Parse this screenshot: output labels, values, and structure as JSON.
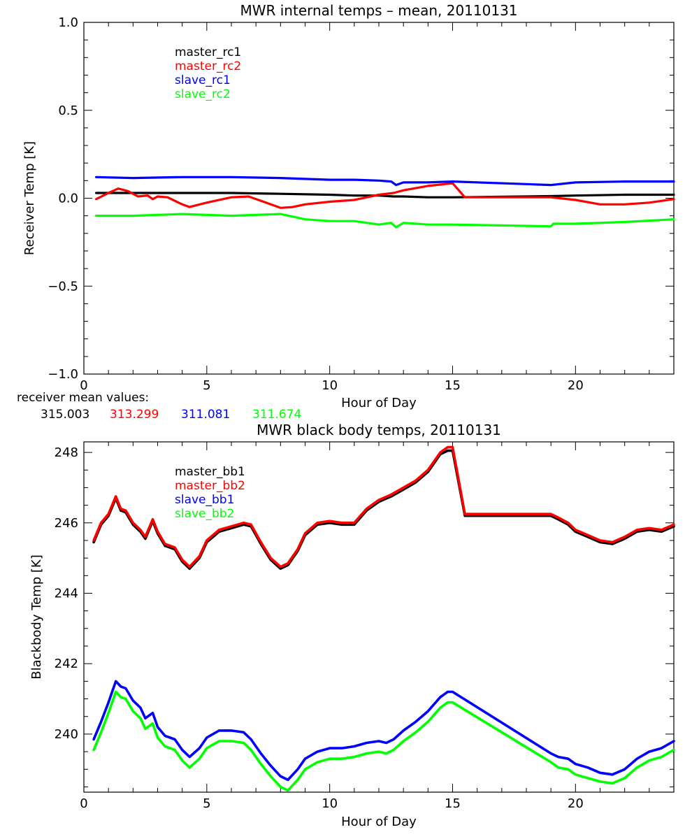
{
  "chart_data": [
    {
      "type": "line",
      "title": "MWR internal temps – mean, 20110131",
      "xlabel": "Hour of Day",
      "ylabel": "Receiver Temp [K]",
      "xlim": [
        0,
        24
      ],
      "ylim": [
        -1.0,
        1.0
      ],
      "xticks": [
        0,
        5,
        10,
        15,
        20
      ],
      "xtick_labels": [
        "0",
        "5",
        "10",
        "15",
        "20"
      ],
      "yticks": [
        -1.0,
        -0.5,
        0.0,
        0.5,
        1.0
      ],
      "ytick_labels": [
        "−1.0",
        "−0.5",
        "0.0",
        "0.5",
        "1.0"
      ],
      "grid": false,
      "legend_position": "upper-left, inside plot",
      "series": [
        {
          "name": "master_rc1",
          "color": "#000000",
          "x": [
            0.5,
            2,
            4,
            6,
            8,
            10,
            11,
            12,
            12.6,
            13,
            14,
            15,
            19,
            20,
            22,
            24
          ],
          "y": [
            0.03,
            0.03,
            0.03,
            0.03,
            0.025,
            0.02,
            0.015,
            0.015,
            0.01,
            0.01,
            0.005,
            0.005,
            0.012,
            0.015,
            0.02,
            0.02
          ]
        },
        {
          "name": "master_rc2",
          "color": "#ff0000",
          "x": [
            0.5,
            1.0,
            1.4,
            1.8,
            2.2,
            2.6,
            2.8,
            3.0,
            3.4,
            4.0,
            4.3,
            5.0,
            6.0,
            6.7,
            7.5,
            8.0,
            8.5,
            9.0,
            10.0,
            11.0,
            12.0,
            12.6,
            13.0,
            14.0,
            15.0,
            15.5,
            19.0,
            20.0,
            21.0,
            22.0,
            23.0,
            24.0
          ],
          "y": [
            -0.005,
            0.03,
            0.055,
            0.04,
            0.01,
            0.015,
            -0.005,
            0.01,
            0.005,
            -0.035,
            -0.05,
            -0.025,
            0.005,
            0.01,
            -0.03,
            -0.055,
            -0.05,
            -0.035,
            -0.02,
            -0.01,
            0.02,
            0.03,
            0.045,
            0.07,
            0.085,
            0.005,
            0.005,
            -0.01,
            -0.035,
            -0.035,
            -0.025,
            -0.005
          ]
        },
        {
          "name": "slave_rc1",
          "color": "#0000ff",
          "x": [
            0.5,
            2,
            4,
            6,
            8,
            10,
            11,
            12,
            12.5,
            12.7,
            13,
            14,
            15,
            19,
            20,
            22,
            24
          ],
          "y": [
            0.12,
            0.115,
            0.12,
            0.12,
            0.115,
            0.105,
            0.105,
            0.1,
            0.095,
            0.075,
            0.09,
            0.09,
            0.095,
            0.075,
            0.09,
            0.095,
            0.095
          ]
        },
        {
          "name": "slave_rc2",
          "color": "#00ff00",
          "x": [
            0.5,
            2,
            4,
            6,
            8,
            9,
            10,
            11,
            12,
            12.5,
            12.7,
            13,
            14,
            15,
            19,
            19.1,
            20,
            22,
            24
          ],
          "y": [
            -0.1,
            -0.1,
            -0.09,
            -0.1,
            -0.09,
            -0.12,
            -0.13,
            -0.13,
            -0.15,
            -0.14,
            -0.165,
            -0.14,
            -0.15,
            -0.15,
            -0.16,
            -0.145,
            -0.145,
            -0.135,
            -0.12
          ]
        }
      ],
      "annotation": {
        "label": "receiver mean values:",
        "values": [
          {
            "text": "315.003",
            "color": "#000000"
          },
          {
            "text": "313.299",
            "color": "#ff0000"
          },
          {
            "text": "311.081",
            "color": "#0000ff"
          },
          {
            "text": "311.674",
            "color": "#00ff00"
          }
        ]
      }
    },
    {
      "type": "line",
      "title": "MWR black body temps, 20110131",
      "xlabel": "Hour of Day",
      "ylabel": "Blackbody Temp [K]",
      "xlim": [
        0,
        24
      ],
      "ylim": [
        238.35,
        248.3
      ],
      "xticks": [
        0,
        5,
        10,
        15,
        20
      ],
      "xtick_labels": [
        "0",
        "5",
        "10",
        "15",
        "20"
      ],
      "yticks": [
        240,
        242,
        244,
        246,
        248
      ],
      "ytick_labels": [
        "240",
        "242",
        "244",
        "246",
        "248"
      ],
      "grid": false,
      "legend_position": "upper-left, inside plot",
      "series": [
        {
          "name": "master_bb1",
          "color": "#000000",
          "x": [
            0.4,
            0.7,
            1.0,
            1.3,
            1.5,
            1.7,
            2.0,
            2.3,
            2.5,
            2.8,
            3.0,
            3.3,
            3.7,
            4.0,
            4.3,
            4.7,
            5.0,
            5.5,
            6.0,
            6.5,
            6.8,
            7.2,
            7.6,
            8.0,
            8.3,
            8.7,
            9.0,
            9.5,
            10.0,
            10.5,
            11.0,
            11.5,
            12.0,
            12.5,
            13.0,
            13.5,
            14.0,
            14.5,
            14.8,
            15.0,
            15.5,
            19.0,
            19.3,
            19.7,
            20.0,
            20.5,
            21.0,
            21.5,
            22.0,
            22.5,
            23.0,
            23.5,
            24.0
          ],
          "y": [
            245.45,
            245.95,
            246.2,
            246.7,
            246.35,
            246.3,
            245.95,
            245.75,
            245.55,
            246.05,
            245.7,
            245.35,
            245.25,
            244.9,
            244.7,
            245.0,
            245.45,
            245.75,
            245.85,
            245.95,
            245.9,
            245.4,
            244.95,
            244.7,
            244.8,
            245.2,
            245.65,
            245.95,
            246.0,
            245.95,
            245.95,
            246.35,
            246.6,
            246.75,
            246.95,
            247.15,
            247.45,
            247.95,
            248.05,
            248.05,
            246.2,
            246.2,
            246.1,
            245.95,
            245.75,
            245.6,
            245.45,
            245.4,
            245.55,
            245.75,
            245.8,
            245.75,
            245.9
          ]
        },
        {
          "name": "master_bb2",
          "color": "#ff0000",
          "x": [
            0.4,
            0.7,
            1.0,
            1.3,
            1.5,
            1.7,
            2.0,
            2.3,
            2.5,
            2.8,
            3.0,
            3.3,
            3.7,
            4.0,
            4.3,
            4.7,
            5.0,
            5.5,
            6.0,
            6.5,
            6.8,
            7.2,
            7.6,
            8.0,
            8.3,
            8.7,
            9.0,
            9.5,
            10.0,
            10.5,
            11.0,
            11.5,
            12.0,
            12.5,
            13.0,
            13.5,
            14.0,
            14.5,
            14.8,
            15.0,
            15.5,
            19.0,
            19.3,
            19.7,
            20.0,
            20.5,
            21.0,
            21.5,
            22.0,
            22.5,
            23.0,
            23.5,
            24.0
          ],
          "y": [
            245.5,
            246.0,
            246.25,
            246.75,
            246.4,
            246.35,
            246.0,
            245.8,
            245.6,
            246.1,
            245.75,
            245.4,
            245.3,
            244.95,
            244.75,
            245.05,
            245.5,
            245.8,
            245.9,
            246.0,
            245.95,
            245.45,
            245.0,
            244.75,
            244.85,
            245.25,
            245.7,
            246.0,
            246.05,
            246.0,
            246.0,
            246.4,
            246.65,
            246.8,
            247.0,
            247.2,
            247.5,
            248.0,
            248.15,
            248.15,
            246.25,
            246.25,
            246.15,
            246.0,
            245.8,
            245.65,
            245.5,
            245.45,
            245.6,
            245.8,
            245.85,
            245.8,
            245.95
          ]
        },
        {
          "name": "slave_bb1",
          "color": "#0000ff",
          "x": [
            0.4,
            0.7,
            1.0,
            1.3,
            1.5,
            1.7,
            2.0,
            2.3,
            2.5,
            2.8,
            3.0,
            3.3,
            3.7,
            4.0,
            4.3,
            4.7,
            5.0,
            5.5,
            6.0,
            6.5,
            6.8,
            7.2,
            7.6,
            8.0,
            8.3,
            8.7,
            9.0,
            9.5,
            10.0,
            10.5,
            11.0,
            11.5,
            12.0,
            12.3,
            12.6,
            13.0,
            13.5,
            14.0,
            14.5,
            14.8,
            15.0,
            19.0,
            19.3,
            19.7,
            20.0,
            20.5,
            21.0,
            21.5,
            22.0,
            22.5,
            23.0,
            23.5,
            24.0
          ],
          "y": [
            239.85,
            240.35,
            240.9,
            241.5,
            241.35,
            241.3,
            240.95,
            240.75,
            240.45,
            240.6,
            240.2,
            239.95,
            239.85,
            239.55,
            239.35,
            239.6,
            239.9,
            240.1,
            240.1,
            240.05,
            239.85,
            239.45,
            239.1,
            238.8,
            238.7,
            239.0,
            239.3,
            239.5,
            239.6,
            239.6,
            239.65,
            239.75,
            239.8,
            239.75,
            239.85,
            240.1,
            240.35,
            240.65,
            241.05,
            241.2,
            241.2,
            239.45,
            239.35,
            239.3,
            239.15,
            239.05,
            238.9,
            238.85,
            239.0,
            239.3,
            239.5,
            239.6,
            239.8
          ]
        },
        {
          "name": "slave_bb2",
          "color": "#00ff00",
          "x": [
            0.4,
            0.7,
            1.0,
            1.3,
            1.5,
            1.7,
            2.0,
            2.3,
            2.5,
            2.8,
            3.0,
            3.3,
            3.7,
            4.0,
            4.3,
            4.7,
            5.0,
            5.5,
            6.0,
            6.5,
            6.8,
            7.2,
            7.6,
            8.0,
            8.3,
            8.7,
            9.0,
            9.5,
            10.0,
            10.5,
            11.0,
            11.5,
            12.0,
            12.3,
            12.6,
            13.0,
            13.5,
            14.0,
            14.5,
            14.8,
            15.0,
            19.0,
            19.3,
            19.7,
            20.0,
            20.5,
            21.0,
            21.5,
            22.0,
            22.5,
            23.0,
            23.5,
            24.0
          ],
          "y": [
            239.55,
            240.05,
            240.6,
            241.2,
            241.05,
            241.0,
            240.65,
            240.45,
            240.15,
            240.3,
            239.9,
            239.65,
            239.55,
            239.25,
            239.05,
            239.3,
            239.6,
            239.8,
            239.8,
            239.75,
            239.55,
            239.15,
            238.8,
            238.5,
            238.4,
            238.7,
            239.0,
            239.2,
            239.3,
            239.3,
            239.35,
            239.45,
            239.5,
            239.45,
            239.55,
            239.8,
            240.05,
            240.35,
            240.75,
            240.9,
            240.9,
            239.2,
            239.05,
            239.0,
            238.85,
            238.75,
            238.65,
            238.6,
            238.75,
            239.05,
            239.25,
            239.35,
            239.55
          ]
        }
      ]
    }
  ]
}
